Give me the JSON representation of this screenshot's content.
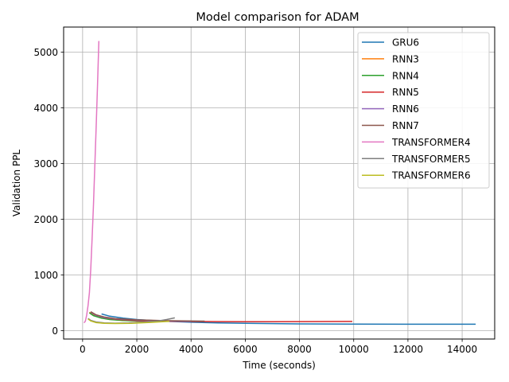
{
  "chart_data": {
    "type": "line",
    "title": "Model comparison for ADAM",
    "xlabel": "Time (seconds)",
    "ylabel": "Validation PPL",
    "xlim": [
      -700,
      15200
    ],
    "ylim": [
      -150,
      5450
    ],
    "xticks": [
      0,
      2000,
      4000,
      6000,
      8000,
      10000,
      12000,
      14000
    ],
    "yticks": [
      0,
      1000,
      2000,
      3000,
      4000,
      5000
    ],
    "grid": true,
    "legend_position": "top-right",
    "series": [
      {
        "name": "GRU6",
        "color": "#1f77b4",
        "x": [
          700,
          1000,
          1500,
          2000,
          3000,
          4000,
          5000,
          6000,
          8000,
          10000,
          12000,
          14500
        ],
        "y": [
          300,
          260,
          225,
          200,
          170,
          152,
          140,
          132,
          122,
          118,
          115,
          115
        ]
      },
      {
        "name": "RNN3",
        "color": "#ff7f0e",
        "x": [
          250,
          400,
          700,
          1000,
          1500,
          2000,
          2500,
          3000
        ],
        "y": [
          330,
          280,
          230,
          205,
          185,
          175,
          170,
          168
        ]
      },
      {
        "name": "RNN4",
        "color": "#2ca02c",
        "x": [
          250,
          400,
          700,
          1000,
          1500,
          2000,
          2800
        ],
        "y": [
          320,
          270,
          225,
          200,
          182,
          173,
          168
        ]
      },
      {
        "name": "RNN5",
        "color": "#d62728",
        "x": [
          300,
          500,
          800,
          1200,
          2000,
          3000,
          4000,
          5000,
          6000,
          7000,
          8000,
          9000,
          9950
        ],
        "y": [
          330,
          280,
          235,
          205,
          180,
          170,
          165,
          163,
          162,
          162,
          163,
          164,
          165
        ]
      },
      {
        "name": "RNN6",
        "color": "#9467bd",
        "x": [
          300,
          500,
          800,
          1200,
          2000,
          3000,
          4000
        ],
        "y": [
          330,
          275,
          235,
          210,
          190,
          175,
          170
        ]
      },
      {
        "name": "RNN7",
        "color": "#8c564b",
        "x": [
          300,
          500,
          800,
          1200,
          2000,
          3000,
          4500
        ],
        "y": [
          340,
          285,
          245,
          215,
          195,
          180,
          172
        ]
      },
      {
        "name": "TRANSFORMER4",
        "color": "#e377c2",
        "x": [
          50,
          100,
          150,
          200,
          250,
          300,
          350,
          400,
          450,
          500,
          550,
          600
        ],
        "y": [
          140,
          170,
          280,
          450,
          680,
          1100,
          1650,
          2250,
          2950,
          3650,
          4400,
          5200
        ]
      },
      {
        "name": "TRANSFORMER5",
        "color": "#7f7f7f",
        "x": [
          200,
          300,
          500,
          800,
          1200,
          1700,
          2300,
          2800,
          3100,
          3400
        ],
        "y": [
          220,
          185,
          155,
          140,
          135,
          140,
          155,
          175,
          200,
          230
        ]
      },
      {
        "name": "TRANSFORMER6",
        "color": "#bcbd22",
        "x": [
          200,
          300,
          500,
          800,
          1200,
          1800,
          2500,
          3200
        ],
        "y": [
          210,
          175,
          145,
          132,
          128,
          133,
          148,
          168
        ]
      }
    ]
  }
}
